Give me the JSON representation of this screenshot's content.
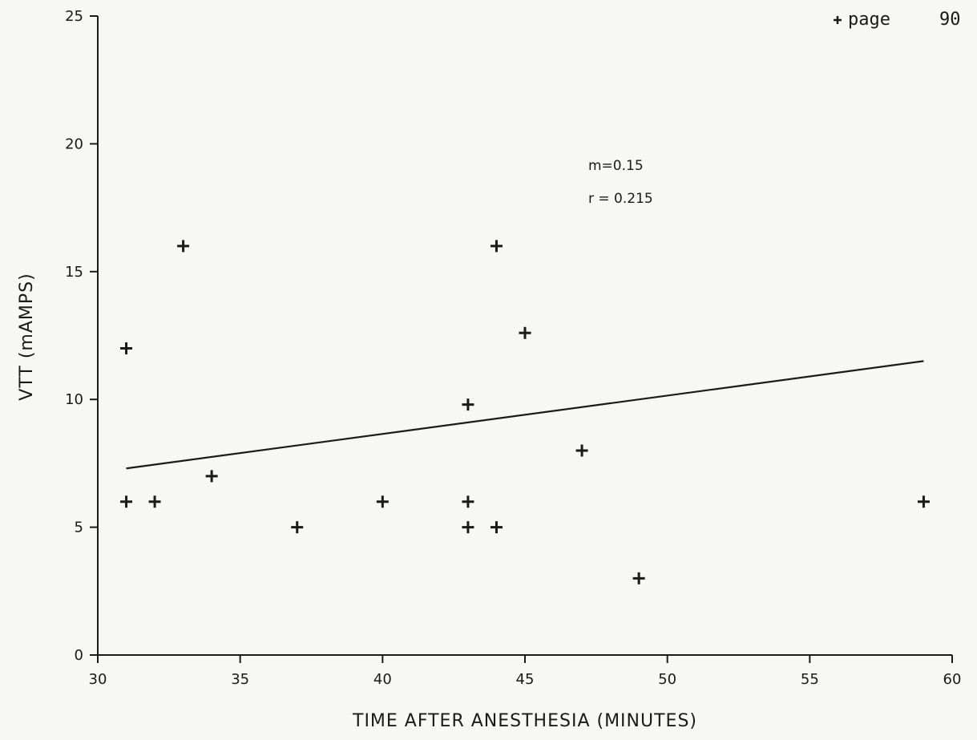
{
  "page": {
    "label": "page",
    "number": "90"
  },
  "chart_data": {
    "type": "scatter",
    "title": "",
    "xlabel": "TIME AFTER ANESTHESIA (MINUTES)",
    "ylabel": "VTT (mAMPS)",
    "xlim": [
      30,
      60
    ],
    "ylim": [
      0,
      25
    ],
    "xticks": [
      30,
      35,
      40,
      45,
      50,
      55,
      60
    ],
    "yticks": [
      0,
      5,
      10,
      15,
      20,
      25
    ],
    "grid": false,
    "marker": "plus",
    "points": [
      {
        "x": 31,
        "y": 12
      },
      {
        "x": 31,
        "y": 6
      },
      {
        "x": 32,
        "y": 6
      },
      {
        "x": 33,
        "y": 16
      },
      {
        "x": 34,
        "y": 7
      },
      {
        "x": 37,
        "y": 5
      },
      {
        "x": 40,
        "y": 6
      },
      {
        "x": 43,
        "y": 9.8
      },
      {
        "x": 43,
        "y": 6
      },
      {
        "x": 43,
        "y": 5
      },
      {
        "x": 44,
        "y": 16
      },
      {
        "x": 44,
        "y": 5
      },
      {
        "x": 45,
        "y": 12.6
      },
      {
        "x": 47,
        "y": 8
      },
      {
        "x": 49,
        "y": 3
      },
      {
        "x": 59,
        "y": 6
      }
    ],
    "fit_line": {
      "x": [
        31,
        59
      ],
      "y": [
        7.3,
        11.5
      ]
    },
    "annotations": [
      "m=0.15",
      "r = 0.215"
    ],
    "colors": {
      "ink": "#1a1a1a",
      "background": "#f7f7f5"
    }
  }
}
